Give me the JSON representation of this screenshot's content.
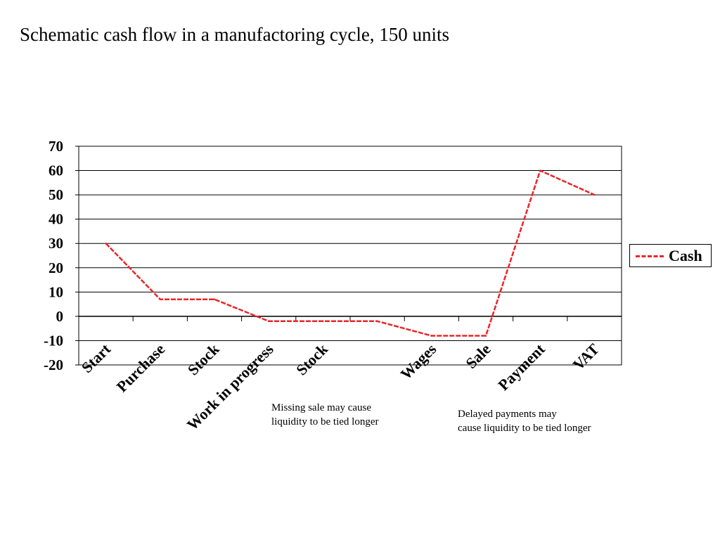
{
  "title": "Schematic cash flow in a manufactoring cycle, 150 units",
  "colors": {
    "series": "#e8262a",
    "grid": "#000000",
    "background": "#ffffff"
  },
  "chart_data": {
    "type": "line",
    "categories": [
      "Start",
      "Purchase",
      "Stock",
      "Work in progress",
      "Stock",
      "",
      "Wages",
      "Sale",
      "Payment",
      "VAT"
    ],
    "series": [
      {
        "name": "Cash",
        "values": [
          30,
          7,
          7,
          -2,
          -2,
          -2,
          -8,
          -8,
          60,
          50
        ]
      }
    ],
    "ylim": [
      -20,
      70
    ],
    "yticks": [
      70,
      60,
      50,
      40,
      30,
      20,
      10,
      0,
      -10,
      -20
    ],
    "xlabel": "",
    "ylabel": "",
    "grid": "horizontal",
    "legend_position": "right"
  },
  "annotations": [
    {
      "text": "Missing sale may cause\nliquidity to be tied longer"
    },
    {
      "text": "Delayed payments may\ncause liquidity to be tied longer"
    }
  ]
}
